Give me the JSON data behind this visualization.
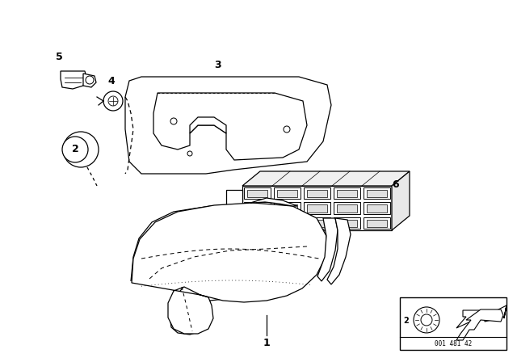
{
  "bg_color": "#ffffff",
  "fig_width": 6.4,
  "fig_height": 4.48,
  "dpi": 100,
  "line_color": "#000000",
  "diagram_id": "001 481 42",
  "label_fontsize": 9,
  "label_fontweight": "bold"
}
